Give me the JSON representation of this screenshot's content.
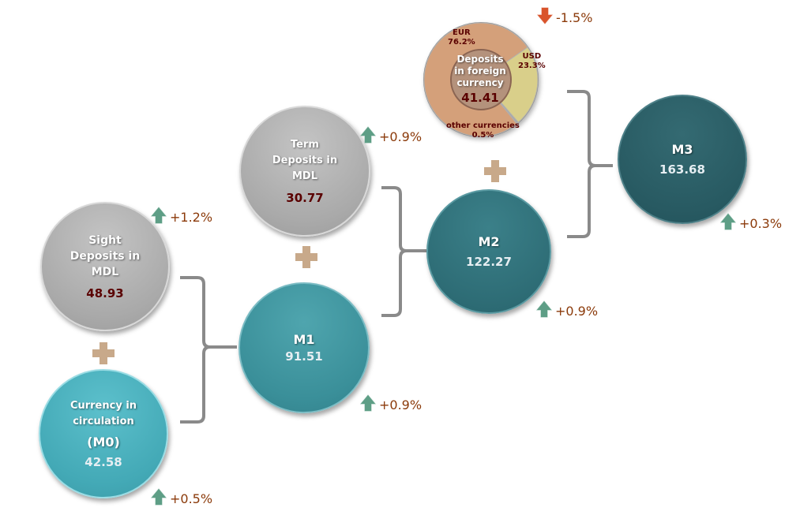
{
  "sight": {
    "title": "Sight Deposits in MDL",
    "value": "48.93",
    "change": "+1.2%",
    "trend": "up"
  },
  "m0": {
    "title": "Currency in circulation",
    "code": "(M0)",
    "value": "42.58",
    "change": "+0.5%",
    "trend": "up"
  },
  "m1": {
    "title": "M1",
    "value": "91.51",
    "change": "+0.9%",
    "trend": "up"
  },
  "term": {
    "title": "Term Deposits in MDL",
    "value": "30.77",
    "change": "+0.9%",
    "trend": "up"
  },
  "m2": {
    "title": "M2",
    "value": "122.27",
    "change": "+0.9%",
    "trend": "up"
  },
  "foreign": {
    "title": "Deposits in foreign currency",
    "value": "41.41",
    "change": "-1.5%",
    "trend": "down",
    "slices": [
      {
        "name": "USD",
        "pct_label": "23.3%",
        "pct": 23.3,
        "color": "#d9cf8a"
      },
      {
        "name": "other currencies",
        "pct_label": "0.5%",
        "pct": 0.5,
        "color": "#a8a8a8"
      },
      {
        "name": "EUR",
        "pct_label": "76.2%",
        "pct": 76.2,
        "color": "#d4a07a"
      }
    ]
  },
  "m3": {
    "title": "M3",
    "value": "163.68",
    "change": "+0.3%",
    "trend": "up"
  },
  "colors": {
    "up": "#5e9e86",
    "down": "#d9542b",
    "change_text": "#8b3a0a"
  }
}
